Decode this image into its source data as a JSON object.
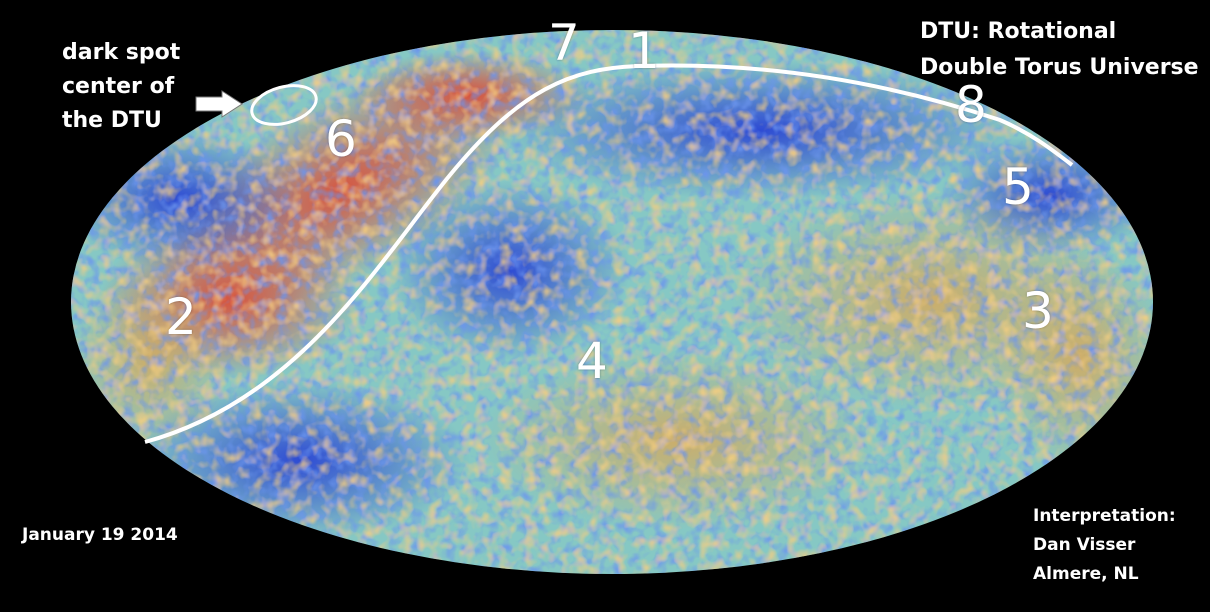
{
  "labels": {
    "dark_spot": [
      "dark spot",
      "center of",
      "the DTU"
    ],
    "title": [
      "DTU: Rotational",
      "Double Torus Universe"
    ],
    "date": "January 19 2014",
    "credit": [
      "Interpretation:",
      "Dan Visser",
      "Almere, NL"
    ]
  },
  "region_numbers": [
    "1",
    "2",
    "3",
    "4",
    "5",
    "6",
    "7",
    "8"
  ],
  "colors": {
    "background": "#000000",
    "annotation": "#ffffff",
    "map_cold": "#2545d8",
    "map_mid": "#7cc6c9",
    "map_warm": "#e9b24f",
    "map_hot": "#e44b2a"
  }
}
